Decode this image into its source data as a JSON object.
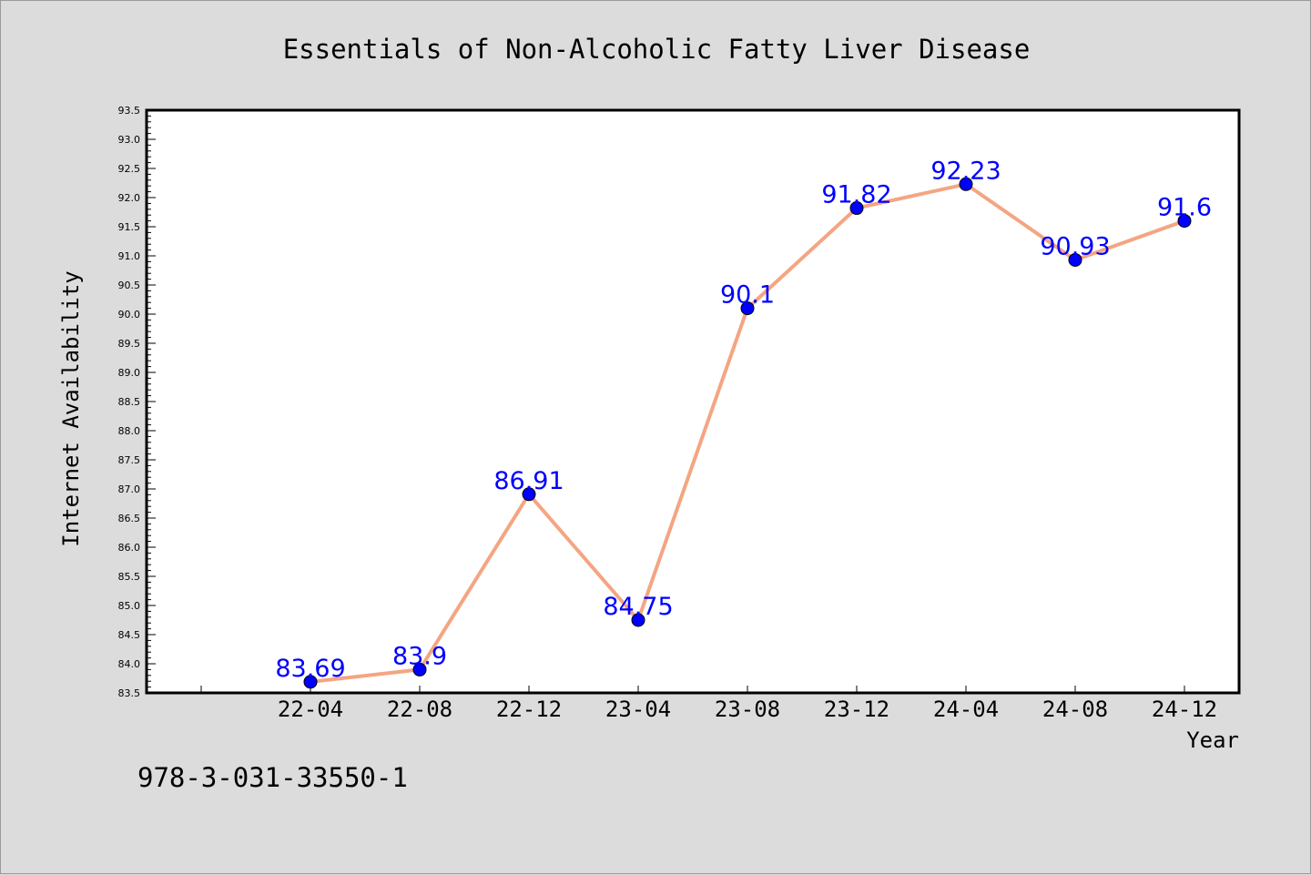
{
  "chart_data": {
    "type": "line",
    "title": "Essentials of Non-Alcoholic Fatty Liver Disease",
    "xlabel": "Year",
    "ylabel": "Internet Availability",
    "categories": [
      "22-04",
      "22-08",
      "22-12",
      "23-04",
      "23-08",
      "23-12",
      "24-04",
      "24-08",
      "24-12"
    ],
    "values": [
      83.69,
      83.9,
      86.91,
      84.75,
      90.1,
      91.82,
      92.23,
      90.93,
      91.6
    ],
    "data_labels": [
      "83.69",
      "83.9",
      "86.91",
      "84.75",
      "90.1",
      "91.82",
      "92.23",
      "90.93",
      "91.6"
    ],
    "ylim": [
      83.5,
      93.5
    ],
    "y_ticks": [
      "83.5",
      "84.0",
      "84.5",
      "85.0",
      "85.5",
      "86.0",
      "86.5",
      "87.0",
      "87.5",
      "88.0",
      "88.5",
      "89.0",
      "89.5",
      "90.0",
      "90.5",
      "91.0",
      "91.5",
      "92.0",
      "92.5",
      "93.0",
      "93.5"
    ],
    "grid": false,
    "colors": {
      "line": "#f4a582",
      "marker": "#0000ff",
      "label": "#0000ff",
      "background": "#dcdcdc",
      "plot_background": "#ffffff"
    }
  },
  "footer": {
    "isbn": "978-3-031-33550-1"
  }
}
